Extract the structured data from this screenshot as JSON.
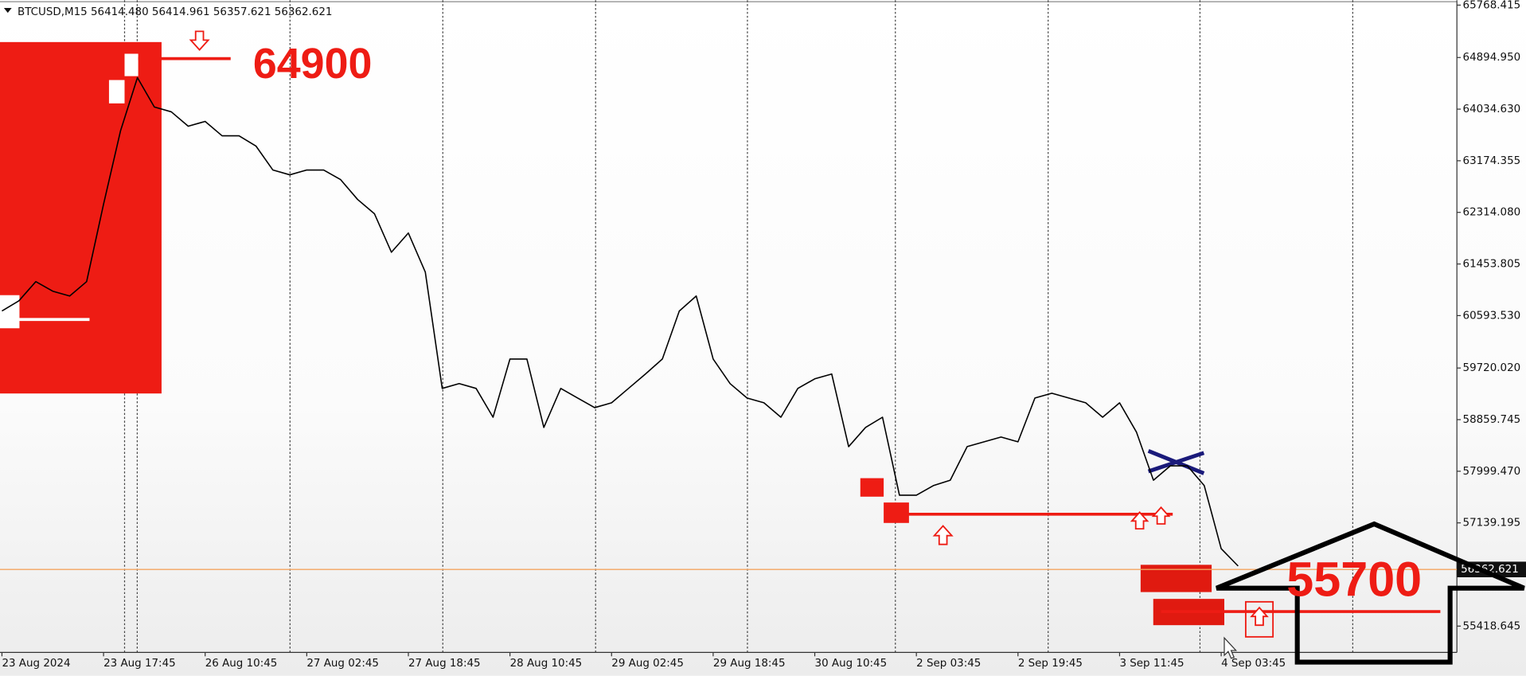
{
  "chart_data": {
    "type": "line",
    "title": "BTCUSD,M15  56414.480 56414.961 56357.621 56362.621",
    "categories": [
      "23 Aug 2024",
      null,
      null,
      null,
      null,
      null,
      "23 Aug 17:45",
      null,
      null,
      null,
      null,
      null,
      "26 Aug 10:45",
      null,
      null,
      null,
      null,
      null,
      "27 Aug 02:45",
      null,
      null,
      null,
      null,
      null,
      "27 Aug 18:45",
      null,
      null,
      null,
      null,
      null,
      "28 Aug 10:45",
      null,
      null,
      null,
      null,
      null,
      "29 Aug 02:45",
      null,
      null,
      null,
      null,
      null,
      "29 Aug 18:45",
      null,
      null,
      null,
      null,
      null,
      "30 Aug 10:45",
      null,
      null,
      null,
      null,
      null,
      "2 Sep 03:45",
      null,
      null,
      null,
      null,
      null,
      "2 Sep 19:45",
      null,
      null,
      null,
      null,
      null,
      "3 Sep 11:45",
      null,
      null,
      null,
      null,
      null,
      "4 Sep 03:45",
      null
    ],
    "series": [
      {
        "name": "BTCUSD",
        "color": "#000000",
        "values": [
          60670,
          60840,
          61160,
          61000,
          60920,
          61160,
          62450,
          63670,
          64560,
          64070,
          63990,
          63750,
          63830,
          63590,
          63590,
          63420,
          63020,
          62940,
          63020,
          63020,
          62860,
          62530,
          62290,
          61650,
          61970,
          61320,
          59380,
          59460,
          59380,
          58900,
          59870,
          59870,
          58730,
          59380,
          59220,
          59060,
          59140,
          59380,
          59620,
          59870,
          60670,
          60920,
          59870,
          59460,
          59220,
          59140,
          58900,
          59380,
          59540,
          59620,
          58410,
          58730,
          58900,
          57600,
          57600,
          57760,
          57850,
          58410,
          58490,
          58570,
          58490,
          59220,
          59300,
          59220,
          59140,
          58900,
          59140,
          58650,
          57850,
          58090,
          58090,
          57760,
          56710,
          56420
        ]
      }
    ],
    "ylim": [
      54980,
      65850
    ],
    "yticks": [
      65768.415,
      {
        "value": 64894.95,
        "label": "64894.950"
      },
      {
        "value": 64034.63,
        "label": "64034.630"
      },
      63174.355,
      {
        "value": 62314.08,
        "label": "62314.080"
      },
      61453.805,
      {
        "value": 60593.53,
        "label": "60593.530"
      },
      {
        "value": 59720.02,
        "label": "59720.020"
      },
      58859.745,
      {
        "value": 57999.47,
        "label": "57999.470"
      },
      57139.195,
      55418.645
    ],
    "current_price": 56362.621,
    "current_price_color": "#f4a460",
    "annotations": [
      "64900",
      "55700"
    ],
    "grid": false
  }
}
